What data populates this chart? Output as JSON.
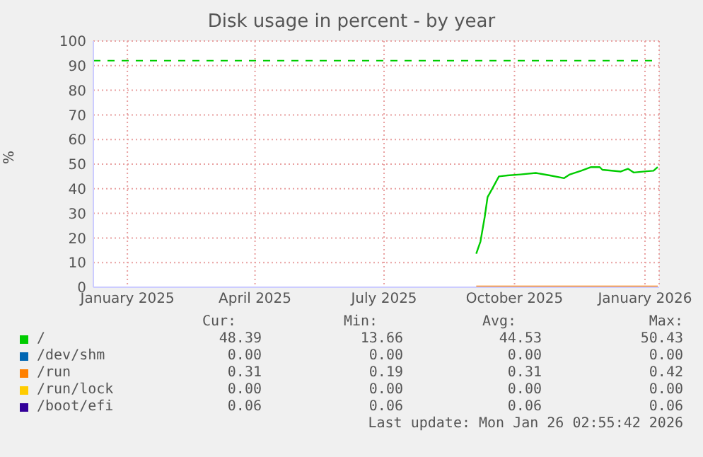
{
  "chart_data": {
    "type": "line",
    "title": "Disk usage in percent - by year",
    "ylabel": "%",
    "x": [
      "2025-09-04",
      "2025-09-07",
      "2025-09-10",
      "2025-09-12",
      "2025-09-15",
      "2025-09-20",
      "2025-09-26",
      "2025-10-05",
      "2025-10-16",
      "2025-10-26",
      "2025-11-05",
      "2025-11-09",
      "2025-11-17",
      "2025-11-24",
      "2025-11-30",
      "2025-12-02",
      "2025-12-15",
      "2025-12-20",
      "2025-12-24",
      "2026-01-02",
      "2026-01-07",
      "2026-01-10"
    ],
    "series": [
      {
        "name": "/",
        "color": "#00cc00",
        "values": [
          13.6,
          18.6,
          28.6,
          36.6,
          39.7,
          45,
          45.4,
          45.8,
          46.4,
          45.4,
          44.3,
          45.8,
          47.3,
          48.8,
          48.8,
          47.7,
          47,
          48.1,
          46.6,
          47.1,
          47.3,
          48.8
        ]
      },
      {
        "name": "/dev/shm",
        "color": "#0066b3",
        "values": [
          null,
          null,
          null,
          null,
          null,
          null,
          null,
          null,
          null,
          null,
          null,
          null,
          null,
          null,
          null,
          null,
          null,
          null,
          null,
          null,
          null,
          null
        ]
      },
      {
        "name": "/run",
        "color": "#ff8000",
        "values": [
          0.31,
          0.31,
          0.31,
          0.31,
          0.31,
          0.31,
          0.31,
          0.31,
          0.31,
          0.31,
          0.31,
          0.31,
          0.31,
          0.31,
          0.31,
          0.31,
          0.31,
          0.31,
          0.31,
          0.31,
          0.31,
          0.31
        ]
      },
      {
        "name": "/run/lock",
        "color": "#ffcc00",
        "values": [
          null,
          null,
          null,
          null,
          null,
          null,
          null,
          null,
          null,
          null,
          null,
          null,
          null,
          null,
          null,
          null,
          null,
          null,
          null,
          null,
          null,
          null
        ]
      },
      {
        "name": "/boot/efi",
        "color": "#330099",
        "values": [
          null,
          null,
          null,
          null,
          null,
          null,
          null,
          null,
          null,
          null,
          null,
          null,
          null,
          null,
          null,
          null,
          null,
          null,
          null,
          null,
          null,
          null
        ]
      }
    ],
    "xlim": [
      "2024-12-08",
      "2026-01-11"
    ],
    "xticks": [
      {
        "value": "2025-01-01",
        "label": "January 2025"
      },
      {
        "value": "2025-04-01",
        "label": "April 2025"
      },
      {
        "value": "2025-07-01",
        "label": "July 2025"
      },
      {
        "value": "2025-10-01",
        "label": "October 2025"
      },
      {
        "value": "2026-01-01",
        "label": "January 2026"
      }
    ],
    "ylim": [
      0,
      100
    ],
    "yticks": [
      0,
      10,
      20,
      30,
      40,
      50,
      60,
      70,
      80,
      90,
      100
    ],
    "ref_lines": [
      {
        "axis": "y",
        "value": 92,
        "color": "#00cc00",
        "line_style": "dashed"
      }
    ],
    "grid": true,
    "legend": "bottom",
    "marker": "none",
    "line_style": "solid",
    "annotations": [
      "Cur:",
      "Min:",
      "Avg:",
      "Max:",
      "48.39",
      "13.66",
      "44.53",
      "50.43",
      "0.00",
      "0.00",
      "0.00",
      "0.00",
      "0.31",
      "0.19",
      "0.31",
      "0.42",
      "0.00",
      "0.00",
      "0.00",
      "0.00",
      "0.06",
      "0.06",
      "0.06",
      "0.06",
      "Last update: Mon Jan 26 02:55:42 2026"
    ]
  }
}
